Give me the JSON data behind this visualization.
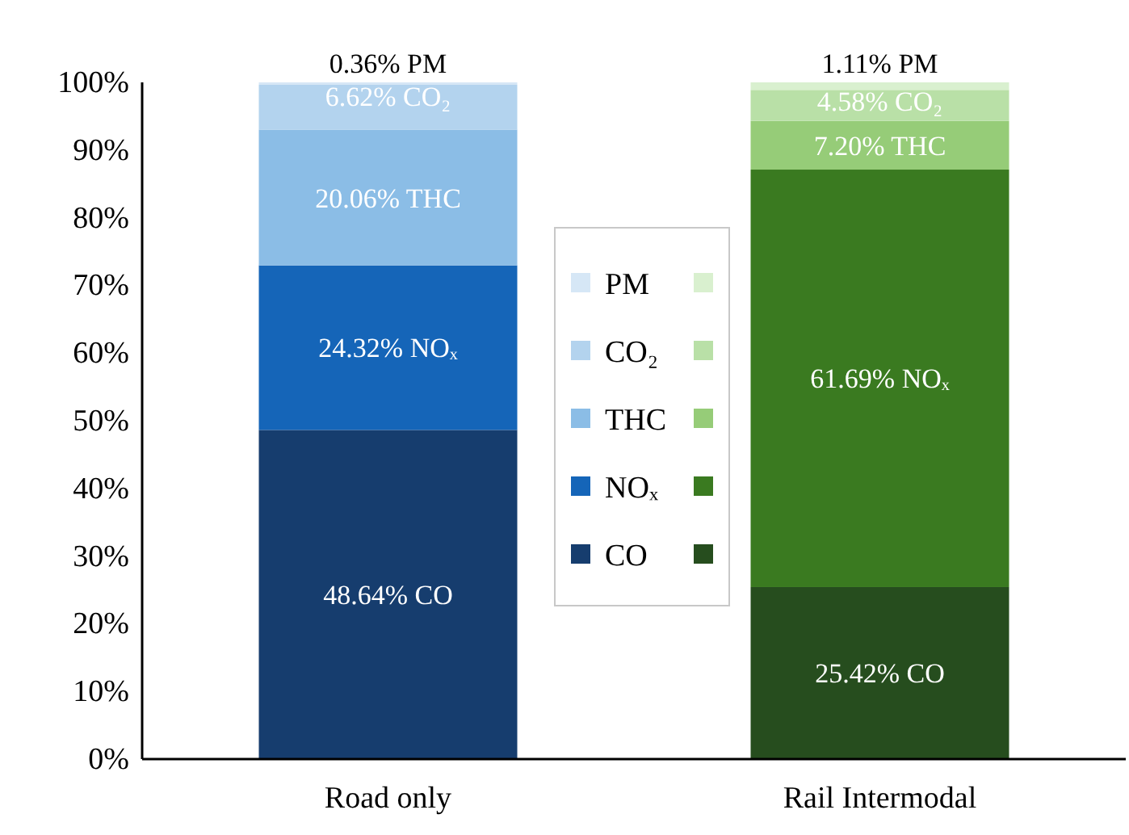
{
  "chart_data": {
    "type": "bar",
    "stacked": true,
    "categories": [
      "Road only",
      "Rail Intermodal"
    ],
    "ylim": [
      0,
      100
    ],
    "yticks": [
      {
        "value": 0,
        "label": "0%"
      },
      {
        "value": 10,
        "label": "10%"
      },
      {
        "value": 20,
        "label": "20%"
      },
      {
        "value": 30,
        "label": "30%"
      },
      {
        "value": 40,
        "label": "40%"
      },
      {
        "value": 50,
        "label": "50%"
      },
      {
        "value": 60,
        "label": "60%"
      },
      {
        "value": 70,
        "label": "70%"
      },
      {
        "value": 80,
        "label": "80%"
      },
      {
        "value": 90,
        "label": "90%"
      },
      {
        "value": 100,
        "label": "100%"
      }
    ],
    "grid": false,
    "legend": "center",
    "series": [
      {
        "name": "CO",
        "colors": [
          "#163d6e",
          "#264d1e"
        ],
        "values": [
          48.64,
          25.42
        ],
        "value_labels": [
          "48.64% CO",
          "25.42% CO"
        ]
      },
      {
        "name": "NOₓ",
        "colors": [
          "#1565b8",
          "#3a7a20"
        ],
        "values": [
          24.32,
          61.69
        ],
        "value_labels": [
          "24.32% NOₓ",
          "61.69% NOₓ"
        ]
      },
      {
        "name": "THC",
        "colors": [
          "#8bbde6",
          "#96cc78"
        ],
        "values": [
          20.06,
          7.2
        ],
        "value_labels": [
          "20.06% THC",
          "7.20% THC"
        ]
      },
      {
        "name": "CO₂",
        "colors": [
          "#b3d3ee",
          "#b9e0a7"
        ],
        "values": [
          6.62,
          4.58
        ],
        "value_labels": [
          "6.62% CO₂",
          "4.58% CO₂"
        ]
      },
      {
        "name": "PM",
        "colors": [
          "#d6e7f6",
          "#d9f0cf"
        ],
        "values": [
          0.36,
          1.11
        ],
        "value_labels": [
          "0.36% PM",
          "1.11% PM"
        ]
      }
    ]
  }
}
